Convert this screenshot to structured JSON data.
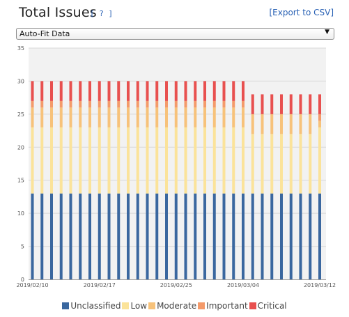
{
  "header": {
    "title": "Total Issues",
    "help_label": "[ ? ]",
    "export_label": "[Export to CSV]"
  },
  "dropdown": {
    "selected": "Auto-Fit Data"
  },
  "colors": {
    "Unclassified": "#3a679f",
    "Low": "#fbe39a",
    "Moderate": "#f7c27a",
    "Important": "#f49a6a",
    "Critical": "#e8504f"
  },
  "chart_data": {
    "type": "bar",
    "stacked": true,
    "ylim": [
      0,
      35
    ],
    "yticks": [
      0,
      5,
      10,
      15,
      20,
      25,
      30,
      35
    ],
    "x_tick_labels": [
      "2019/02/10",
      "2019/02/17",
      "2019/02/25",
      "2019/03/04",
      "2019/03/12"
    ],
    "x_tick_positions": [
      0,
      7,
      15,
      22,
      30
    ],
    "categories": [
      "2019/02/10",
      "2019/02/11",
      "2019/02/12",
      "2019/02/13",
      "2019/02/14",
      "2019/02/15",
      "2019/02/16",
      "2019/02/17",
      "2019/02/18",
      "2019/02/19",
      "2019/02/20",
      "2019/02/21",
      "2019/02/22",
      "2019/02/23",
      "2019/02/24",
      "2019/02/25",
      "2019/02/26",
      "2019/02/27",
      "2019/02/28",
      "2019/03/01",
      "2019/03/02",
      "2019/03/03",
      "2019/03/04",
      "2019/03/05",
      "2019/03/06",
      "2019/03/07",
      "2019/03/08",
      "2019/03/09",
      "2019/03/10",
      "2019/03/11",
      "2019/03/12"
    ],
    "series": [
      {
        "name": "Unclassified",
        "values": [
          13,
          13,
          13,
          13,
          13,
          13,
          13,
          13,
          13,
          13,
          13,
          13,
          13,
          13,
          13,
          13,
          13,
          13,
          13,
          13,
          13,
          13,
          13,
          13,
          13,
          13,
          13,
          13,
          13,
          13,
          13
        ]
      },
      {
        "name": "Low",
        "values": [
          10,
          10,
          10,
          10,
          10,
          10,
          10,
          10,
          10,
          10,
          10,
          10,
          10,
          10,
          10,
          10,
          10,
          10,
          10,
          10,
          10,
          10,
          10,
          9,
          9,
          9,
          9,
          9,
          9,
          9,
          10
        ]
      },
      {
        "name": "Moderate",
        "values": [
          3,
          3,
          3,
          3,
          3,
          3,
          3,
          3,
          3,
          3,
          3,
          3,
          3,
          3,
          3,
          3,
          3,
          3,
          3,
          3,
          3,
          3,
          3,
          3,
          3,
          3,
          3,
          3,
          3,
          3,
          1
        ]
      },
      {
        "name": "Important",
        "values": [
          1,
          1,
          1,
          1,
          1,
          1,
          1,
          1,
          1,
          1,
          1,
          1,
          1,
          1,
          1,
          1,
          1,
          1,
          1,
          1,
          1,
          1,
          1,
          0,
          0,
          0,
          0,
          0,
          0,
          0,
          1
        ]
      },
      {
        "name": "Critical",
        "values": [
          3,
          3,
          3,
          3,
          3,
          3,
          3,
          3,
          3,
          3,
          3,
          3,
          3,
          3,
          3,
          3,
          3,
          3,
          3,
          3,
          3,
          3,
          3,
          3,
          3,
          3,
          3,
          3,
          3,
          3,
          3
        ]
      }
    ],
    "legend": [
      "Unclassified",
      "Low",
      "Moderate",
      "Important",
      "Critical"
    ],
    "legend_placement": "bottom",
    "grid": true
  }
}
